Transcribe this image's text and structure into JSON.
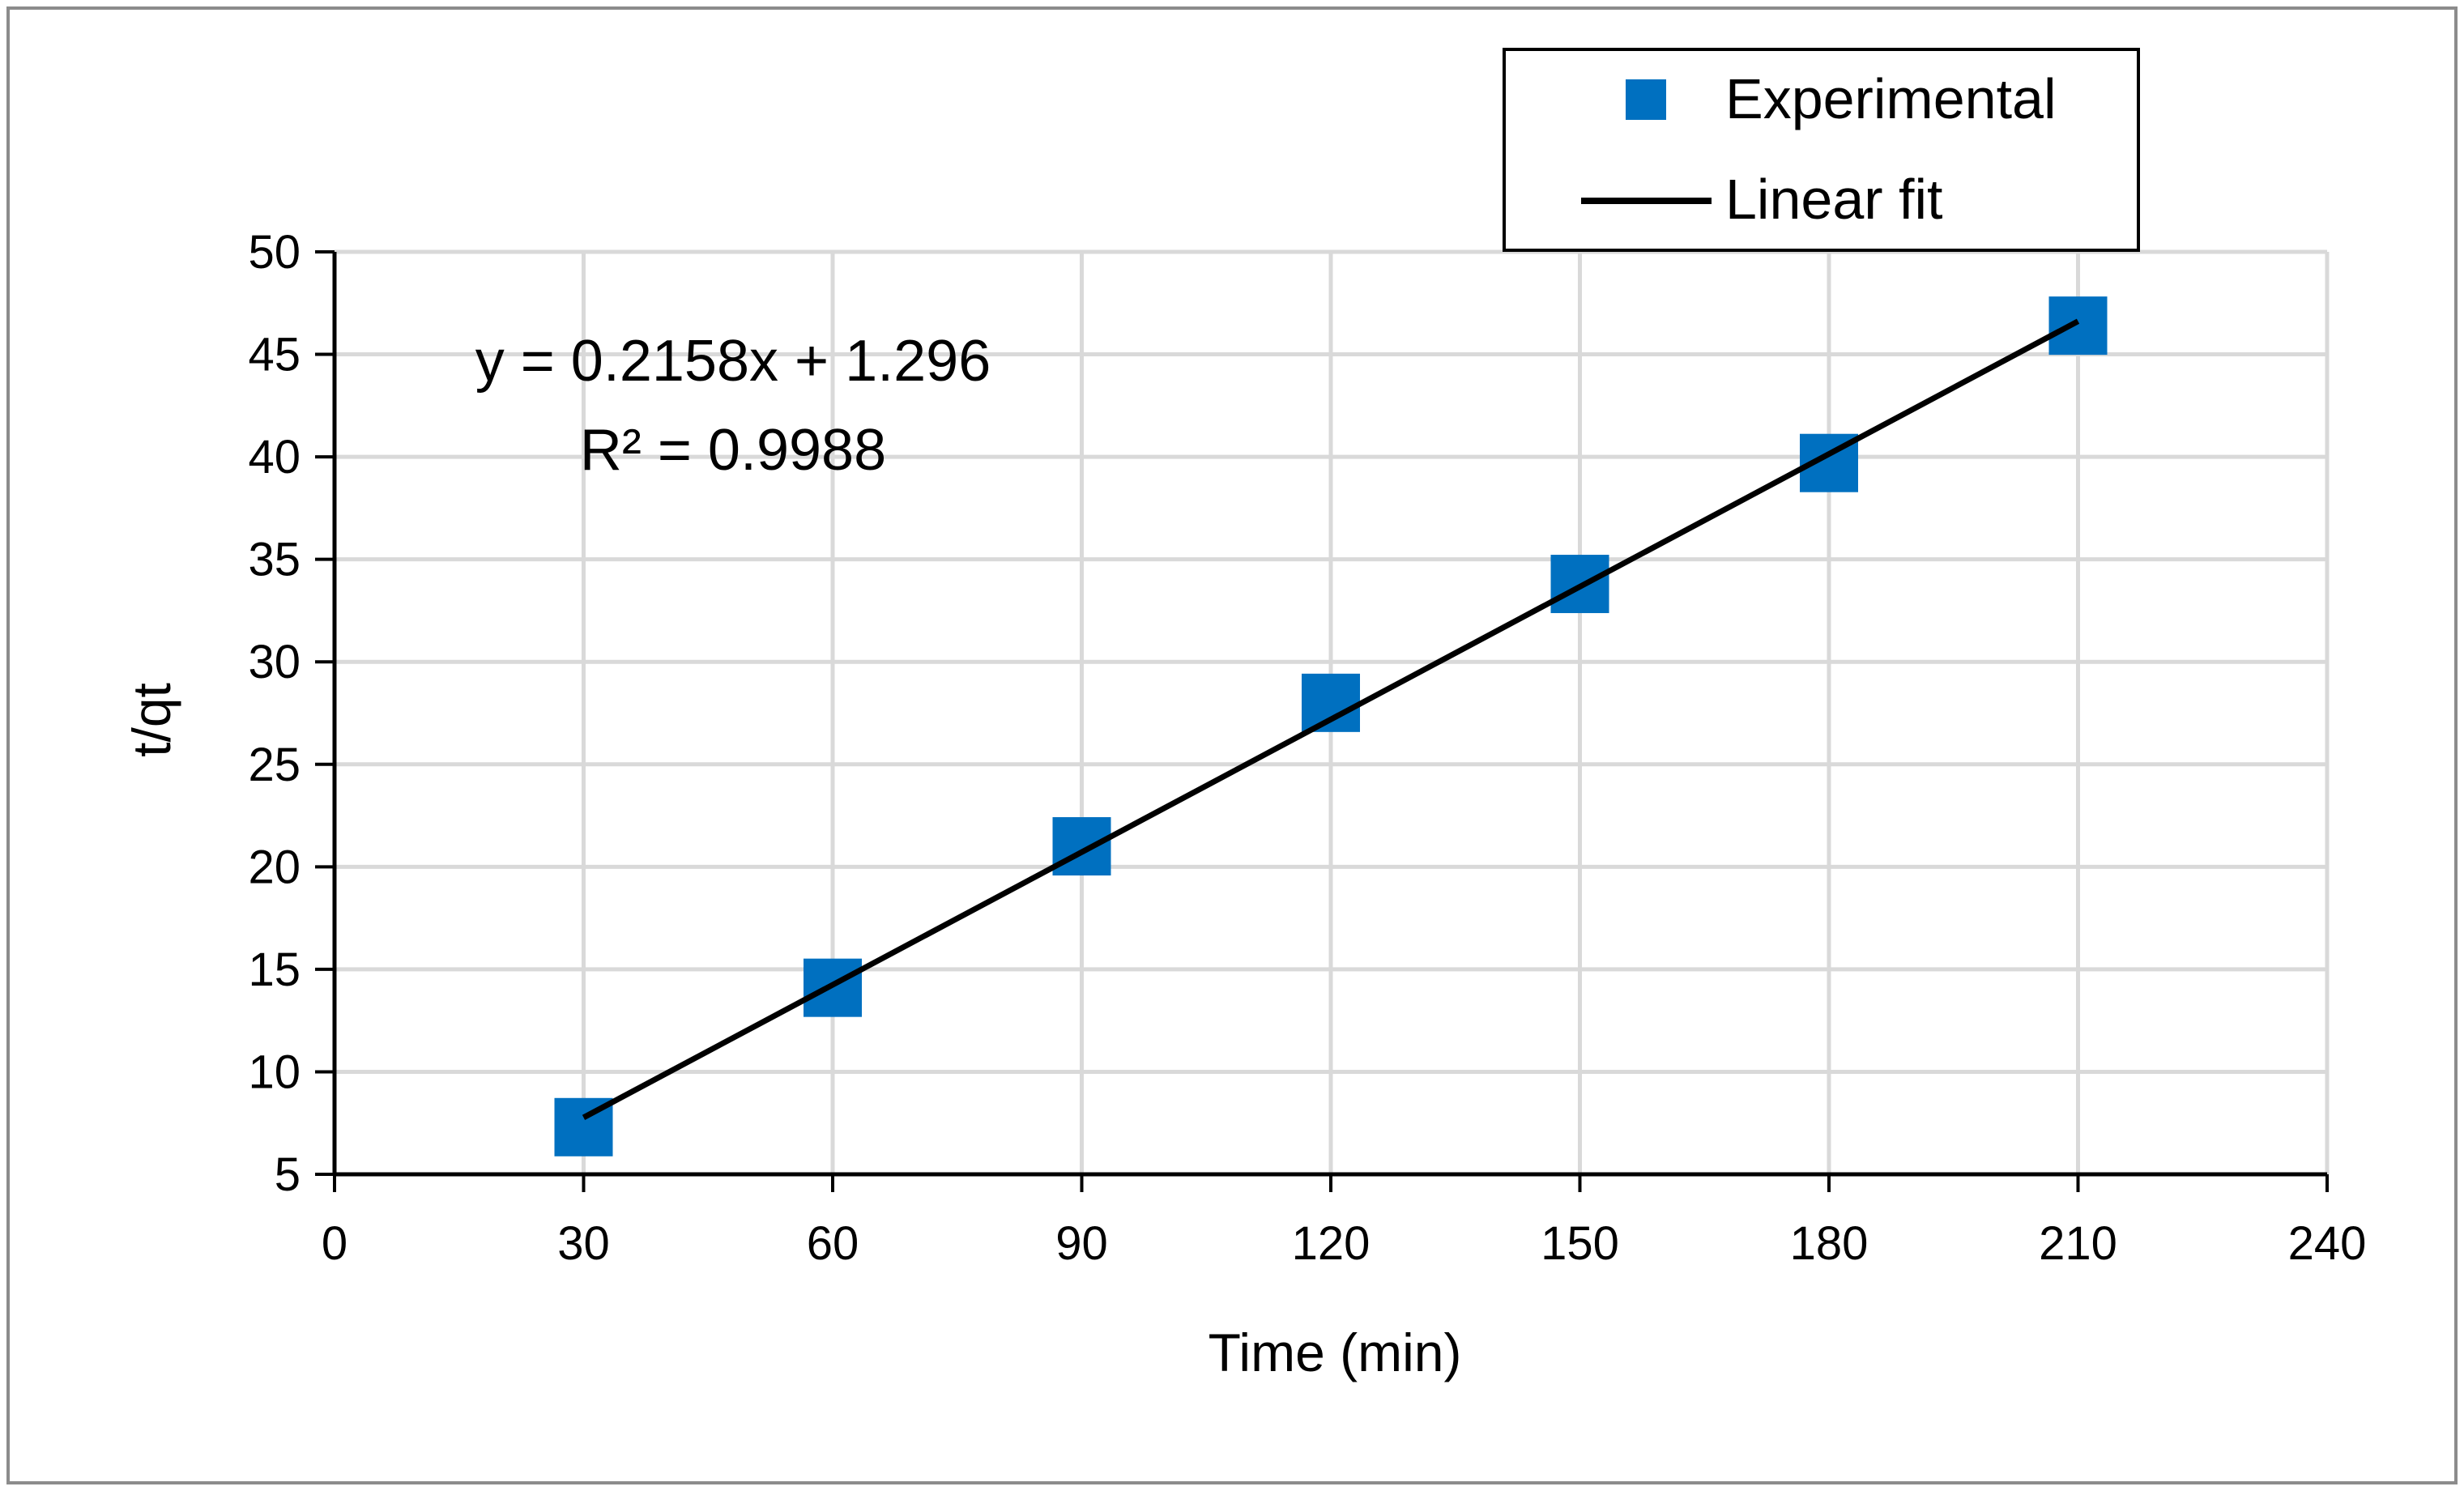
{
  "chart_data": {
    "type": "scatter",
    "title": "",
    "xlabel": "Time (min)",
    "ylabel": "t/qt",
    "xlim": [
      0,
      240
    ],
    "ylim": [
      5,
      50
    ],
    "x_ticks": [
      0,
      30,
      60,
      90,
      120,
      150,
      180,
      210,
      240
    ],
    "y_ticks": [
      5,
      10,
      15,
      20,
      25,
      30,
      35,
      40,
      45,
      50
    ],
    "grid": true,
    "legend_position": "top-right",
    "series": [
      {
        "name": "Experimental",
        "kind": "marker",
        "marker": "square",
        "color": "#0070C0",
        "x": [
          30,
          60,
          90,
          120,
          150,
          180,
          210
        ],
        "y": [
          7.3,
          14.1,
          21.0,
          28.0,
          33.8,
          39.7,
          46.4
        ]
      },
      {
        "name": "Linear fit",
        "kind": "line",
        "color": "#000000",
        "x": [
          30,
          210
        ],
        "slope": 0.2158,
        "intercept": 1.296
      }
    ],
    "annotations": {
      "equation": "y = 0.2158x + 1.296",
      "r_squared": "R² = 0.9988"
    }
  }
}
